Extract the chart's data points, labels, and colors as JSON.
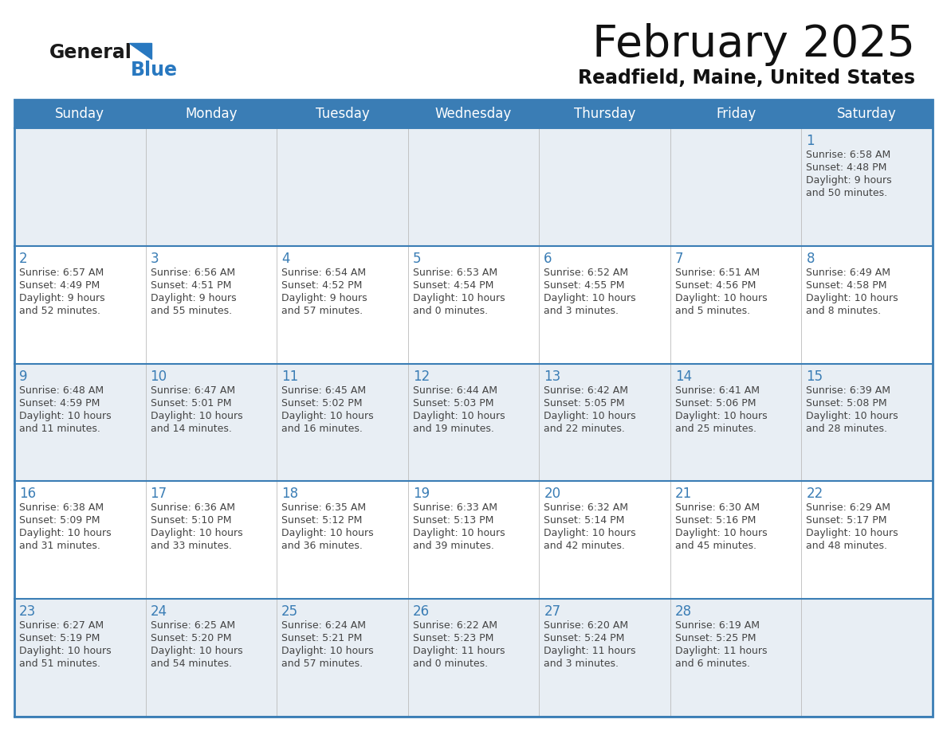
{
  "title": "February 2025",
  "subtitle": "Readfield, Maine, United States",
  "days_of_week": [
    "Sunday",
    "Monday",
    "Tuesday",
    "Wednesday",
    "Thursday",
    "Friday",
    "Saturday"
  ],
  "header_bg_color": "#3a7db5",
  "header_text_color": "#ffffff",
  "row_bg_white": "#ffffff",
  "row_bg_gray": "#e8eef4",
  "grid_line_color": "#3a7db5",
  "inner_grid_color": "#aaaaaa",
  "day_number_color": "#3a7db5",
  "text_color": "#444444",
  "logo_general_color": "#1a1a1a",
  "logo_blue_color": "#2878c0",
  "calendar_data": [
    [
      null,
      null,
      null,
      null,
      null,
      null,
      {
        "day": 1,
        "sunrise": "6:58 AM",
        "sunset": "4:48 PM",
        "daylight_h": "9 hours",
        "daylight_m": "and 50 minutes."
      }
    ],
    [
      {
        "day": 2,
        "sunrise": "6:57 AM",
        "sunset": "4:49 PM",
        "daylight_h": "9 hours",
        "daylight_m": "and 52 minutes."
      },
      {
        "day": 3,
        "sunrise": "6:56 AM",
        "sunset": "4:51 PM",
        "daylight_h": "9 hours",
        "daylight_m": "and 55 minutes."
      },
      {
        "day": 4,
        "sunrise": "6:54 AM",
        "sunset": "4:52 PM",
        "daylight_h": "9 hours",
        "daylight_m": "and 57 minutes."
      },
      {
        "day": 5,
        "sunrise": "6:53 AM",
        "sunset": "4:54 PM",
        "daylight_h": "10 hours",
        "daylight_m": "and 0 minutes."
      },
      {
        "day": 6,
        "sunrise": "6:52 AM",
        "sunset": "4:55 PM",
        "daylight_h": "10 hours",
        "daylight_m": "and 3 minutes."
      },
      {
        "day": 7,
        "sunrise": "6:51 AM",
        "sunset": "4:56 PM",
        "daylight_h": "10 hours",
        "daylight_m": "and 5 minutes."
      },
      {
        "day": 8,
        "sunrise": "6:49 AM",
        "sunset": "4:58 PM",
        "daylight_h": "10 hours",
        "daylight_m": "and 8 minutes."
      }
    ],
    [
      {
        "day": 9,
        "sunrise": "6:48 AM",
        "sunset": "4:59 PM",
        "daylight_h": "10 hours",
        "daylight_m": "and 11 minutes."
      },
      {
        "day": 10,
        "sunrise": "6:47 AM",
        "sunset": "5:01 PM",
        "daylight_h": "10 hours",
        "daylight_m": "and 14 minutes."
      },
      {
        "day": 11,
        "sunrise": "6:45 AM",
        "sunset": "5:02 PM",
        "daylight_h": "10 hours",
        "daylight_m": "and 16 minutes."
      },
      {
        "day": 12,
        "sunrise": "6:44 AM",
        "sunset": "5:03 PM",
        "daylight_h": "10 hours",
        "daylight_m": "and 19 minutes."
      },
      {
        "day": 13,
        "sunrise": "6:42 AM",
        "sunset": "5:05 PM",
        "daylight_h": "10 hours",
        "daylight_m": "and 22 minutes."
      },
      {
        "day": 14,
        "sunrise": "6:41 AM",
        "sunset": "5:06 PM",
        "daylight_h": "10 hours",
        "daylight_m": "and 25 minutes."
      },
      {
        "day": 15,
        "sunrise": "6:39 AM",
        "sunset": "5:08 PM",
        "daylight_h": "10 hours",
        "daylight_m": "and 28 minutes."
      }
    ],
    [
      {
        "day": 16,
        "sunrise": "6:38 AM",
        "sunset": "5:09 PM",
        "daylight_h": "10 hours",
        "daylight_m": "and 31 minutes."
      },
      {
        "day": 17,
        "sunrise": "6:36 AM",
        "sunset": "5:10 PM",
        "daylight_h": "10 hours",
        "daylight_m": "and 33 minutes."
      },
      {
        "day": 18,
        "sunrise": "6:35 AM",
        "sunset": "5:12 PM",
        "daylight_h": "10 hours",
        "daylight_m": "and 36 minutes."
      },
      {
        "day": 19,
        "sunrise": "6:33 AM",
        "sunset": "5:13 PM",
        "daylight_h": "10 hours",
        "daylight_m": "and 39 minutes."
      },
      {
        "day": 20,
        "sunrise": "6:32 AM",
        "sunset": "5:14 PM",
        "daylight_h": "10 hours",
        "daylight_m": "and 42 minutes."
      },
      {
        "day": 21,
        "sunrise": "6:30 AM",
        "sunset": "5:16 PM",
        "daylight_h": "10 hours",
        "daylight_m": "and 45 minutes."
      },
      {
        "day": 22,
        "sunrise": "6:29 AM",
        "sunset": "5:17 PM",
        "daylight_h": "10 hours",
        "daylight_m": "and 48 minutes."
      }
    ],
    [
      {
        "day": 23,
        "sunrise": "6:27 AM",
        "sunset": "5:19 PM",
        "daylight_h": "10 hours",
        "daylight_m": "and 51 minutes."
      },
      {
        "day": 24,
        "sunrise": "6:25 AM",
        "sunset": "5:20 PM",
        "daylight_h": "10 hours",
        "daylight_m": "and 54 minutes."
      },
      {
        "day": 25,
        "sunrise": "6:24 AM",
        "sunset": "5:21 PM",
        "daylight_h": "10 hours",
        "daylight_m": "and 57 minutes."
      },
      {
        "day": 26,
        "sunrise": "6:22 AM",
        "sunset": "5:23 PM",
        "daylight_h": "11 hours",
        "daylight_m": "and 0 minutes."
      },
      {
        "day": 27,
        "sunrise": "6:20 AM",
        "sunset": "5:24 PM",
        "daylight_h": "11 hours",
        "daylight_m": "and 3 minutes."
      },
      {
        "day": 28,
        "sunrise": "6:19 AM",
        "sunset": "5:25 PM",
        "daylight_h": "11 hours",
        "daylight_m": "and 6 minutes."
      },
      null
    ]
  ]
}
